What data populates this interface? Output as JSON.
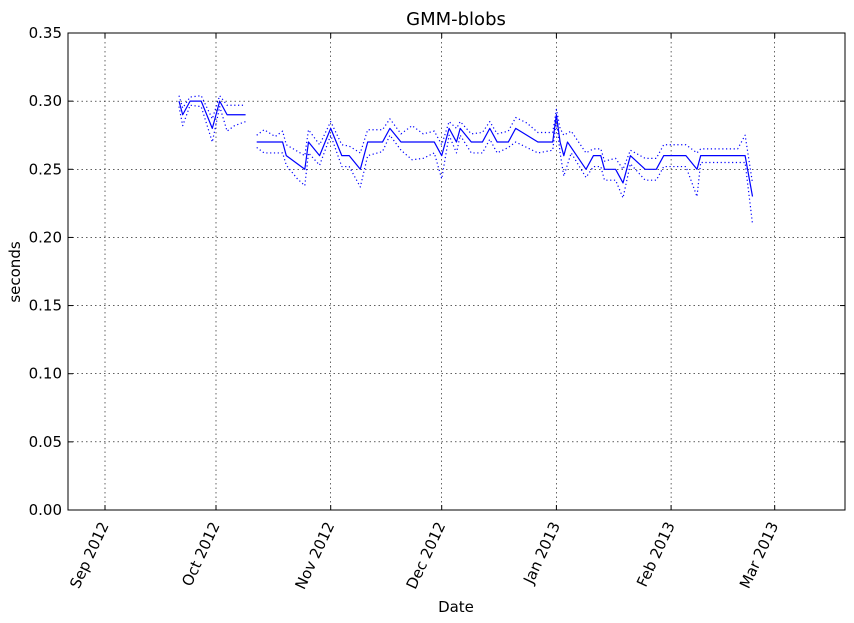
{
  "chart_data": {
    "type": "line",
    "title": "GMM-blobs",
    "xlabel": "Date",
    "ylabel": "seconds",
    "ylim": [
      0,
      0.35
    ],
    "xlim": [
      "2012-08-22",
      "2013-03-20"
    ],
    "grid": true,
    "y_ticks": [
      0.0,
      0.05,
      0.1,
      0.15,
      0.2,
      0.25,
      0.3,
      0.35
    ],
    "y_tick_labels": [
      "0.00",
      "0.05",
      "0.10",
      "0.15",
      "0.20",
      "0.25",
      "0.30",
      "0.35"
    ],
    "x_ticks": [
      "2012-09-01",
      "2012-10-01",
      "2012-11-01",
      "2012-12-01",
      "2013-01-01",
      "2013-02-01",
      "2013-03-01"
    ],
    "x_tick_labels": [
      "Sep 2012",
      "Oct 2012",
      "Nov 2012",
      "Dec 2012",
      "Jan 2013",
      "Feb 2013",
      "Mar 2013"
    ],
    "color": "#0000ff",
    "series": [
      {
        "style": "solid",
        "points": [
          [
            "2012-09-21",
            0.3
          ],
          [
            "2012-09-22",
            0.29
          ],
          [
            "2012-09-24",
            0.3
          ],
          [
            "2012-09-27",
            0.3
          ],
          [
            "2012-09-30",
            0.28
          ],
          [
            "2012-10-02",
            0.3
          ],
          [
            "2012-10-04",
            0.29
          ],
          [
            "2012-10-09",
            0.29
          ],
          null,
          [
            "2012-10-12",
            0.27
          ],
          [
            "2012-10-19",
            0.27
          ],
          [
            "2012-10-20",
            0.26
          ],
          [
            "2012-10-25",
            0.25
          ],
          [
            "2012-10-26",
            0.27
          ],
          [
            "2012-10-29",
            0.26
          ],
          [
            "2012-11-01",
            0.28
          ],
          [
            "2012-11-04",
            0.26
          ],
          [
            "2012-11-06",
            0.26
          ],
          [
            "2012-11-09",
            0.25
          ],
          [
            "2012-11-11",
            0.27
          ],
          [
            "2012-11-15",
            0.27
          ],
          [
            "2012-11-17",
            0.28
          ],
          [
            "2012-11-20",
            0.27
          ],
          [
            "2012-11-29",
            0.27
          ],
          [
            "2012-12-01",
            0.26
          ],
          [
            "2012-12-03",
            0.28
          ],
          [
            "2012-12-05",
            0.27
          ],
          [
            "2012-12-06",
            0.28
          ],
          [
            "2012-12-09",
            0.27
          ],
          [
            "2012-12-12",
            0.27
          ],
          [
            "2012-12-14",
            0.28
          ],
          [
            "2012-12-16",
            0.27
          ],
          [
            "2012-12-19",
            0.27
          ],
          [
            "2012-12-21",
            0.28
          ],
          [
            "2012-12-27",
            0.27
          ],
          [
            "2012-12-30",
            0.27
          ],
          [
            "2012-12-31",
            0.27
          ],
          [
            "2013-01-01",
            0.29
          ],
          [
            "2013-01-02",
            0.27
          ],
          [
            "2013-01-03",
            0.26
          ],
          [
            "2013-01-04",
            0.27
          ],
          [
            "2013-01-09",
            0.25
          ],
          [
            "2013-01-11",
            0.26
          ],
          [
            "2013-01-13",
            0.26
          ],
          [
            "2013-01-14",
            0.25
          ],
          [
            "2013-01-17",
            0.25
          ],
          [
            "2013-01-19",
            0.24
          ],
          [
            "2013-01-21",
            0.26
          ],
          [
            "2013-01-25",
            0.25
          ],
          [
            "2013-01-28",
            0.25
          ],
          [
            "2013-01-30",
            0.26
          ],
          [
            "2013-02-05",
            0.26
          ],
          [
            "2013-02-08",
            0.25
          ],
          [
            "2013-02-09",
            0.26
          ],
          [
            "2013-02-21",
            0.26
          ],
          [
            "2013-02-23",
            0.23
          ]
        ]
      },
      {
        "style": "dotted",
        "points": [
          [
            "2012-09-21",
            0.304
          ],
          [
            "2012-09-22",
            0.295
          ],
          [
            "2012-09-24",
            0.303
          ],
          [
            "2012-09-27",
            0.304
          ],
          [
            "2012-09-30",
            0.287
          ],
          [
            "2012-10-02",
            0.304
          ],
          [
            "2012-10-04",
            0.297
          ],
          [
            "2012-10-09",
            0.297
          ],
          null,
          [
            "2012-10-12",
            0.275
          ],
          [
            "2012-10-14",
            0.279
          ],
          [
            "2012-10-17",
            0.274
          ],
          [
            "2012-10-19",
            0.278
          ],
          [
            "2012-10-20",
            0.268
          ],
          [
            "2012-10-25",
            0.26
          ],
          [
            "2012-10-26",
            0.279
          ],
          [
            "2012-10-29",
            0.268
          ],
          [
            "2012-11-01",
            0.285
          ],
          [
            "2012-11-04",
            0.268
          ],
          [
            "2012-11-06",
            0.267
          ],
          [
            "2012-11-09",
            0.262
          ],
          [
            "2012-11-11",
            0.279
          ],
          [
            "2012-11-15",
            0.279
          ],
          [
            "2012-11-17",
            0.287
          ],
          [
            "2012-11-20",
            0.276
          ],
          [
            "2012-11-23",
            0.282
          ],
          [
            "2012-11-26",
            0.276
          ],
          [
            "2012-11-29",
            0.278
          ],
          [
            "2012-12-01",
            0.268
          ],
          [
            "2012-12-03",
            0.285
          ],
          [
            "2012-12-05",
            0.28
          ],
          [
            "2012-12-06",
            0.285
          ],
          [
            "2012-12-09",
            0.276
          ],
          [
            "2012-12-12",
            0.277
          ],
          [
            "2012-12-14",
            0.285
          ],
          [
            "2012-12-16",
            0.276
          ],
          [
            "2012-12-19",
            0.278
          ],
          [
            "2012-12-21",
            0.288
          ],
          [
            "2012-12-24",
            0.284
          ],
          [
            "2012-12-27",
            0.277
          ],
          [
            "2012-12-31",
            0.277
          ],
          [
            "2013-01-01",
            0.294
          ],
          [
            "2013-01-02",
            0.28
          ],
          [
            "2013-01-03",
            0.275
          ],
          [
            "2013-01-05",
            0.278
          ],
          [
            "2013-01-09",
            0.262
          ],
          [
            "2013-01-11",
            0.265
          ],
          [
            "2013-01-13",
            0.265
          ],
          [
            "2013-01-14",
            0.256
          ],
          [
            "2013-01-17",
            0.258
          ],
          [
            "2013-01-19",
            0.25
          ],
          [
            "2013-01-21",
            0.264
          ],
          [
            "2013-01-25",
            0.258
          ],
          [
            "2013-01-28",
            0.258
          ],
          [
            "2013-01-30",
            0.268
          ],
          [
            "2013-02-05",
            0.268
          ],
          [
            "2013-02-08",
            0.262
          ],
          [
            "2013-02-09",
            0.265
          ],
          [
            "2013-02-19",
            0.265
          ],
          [
            "2013-02-21",
            0.275
          ],
          [
            "2013-02-23",
            0.24
          ]
        ]
      },
      {
        "style": "dotted",
        "points": [
          [
            "2012-09-21",
            0.296
          ],
          [
            "2012-09-22",
            0.282
          ],
          [
            "2012-09-24",
            0.297
          ],
          [
            "2012-09-27",
            0.296
          ],
          [
            "2012-09-30",
            0.27
          ],
          [
            "2012-10-02",
            0.296
          ],
          [
            "2012-10-04",
            0.278
          ],
          [
            "2012-10-06",
            0.282
          ],
          [
            "2012-10-09",
            0.285
          ],
          null,
          [
            "2012-10-12",
            0.266
          ],
          [
            "2012-10-14",
            0.262
          ],
          [
            "2012-10-17",
            0.262
          ],
          [
            "2012-10-19",
            0.262
          ],
          [
            "2012-10-20",
            0.253
          ],
          [
            "2012-10-23",
            0.243
          ],
          [
            "2012-10-25",
            0.238
          ],
          [
            "2012-10-26",
            0.262
          ],
          [
            "2012-10-29",
            0.253
          ],
          [
            "2012-11-01",
            0.275
          ],
          [
            "2012-11-04",
            0.252
          ],
          [
            "2012-11-06",
            0.252
          ],
          [
            "2012-11-09",
            0.237
          ],
          [
            "2012-11-11",
            0.26
          ],
          [
            "2012-11-15",
            0.263
          ],
          [
            "2012-11-17",
            0.275
          ],
          [
            "2012-11-20",
            0.264
          ],
          [
            "2012-11-23",
            0.257
          ],
          [
            "2012-11-26",
            0.258
          ],
          [
            "2012-11-29",
            0.262
          ],
          [
            "2012-12-01",
            0.243
          ],
          [
            "2012-12-03",
            0.275
          ],
          [
            "2012-12-05",
            0.262
          ],
          [
            "2012-12-06",
            0.275
          ],
          [
            "2012-12-09",
            0.262
          ],
          [
            "2012-12-12",
            0.262
          ],
          [
            "2012-12-14",
            0.272
          ],
          [
            "2012-12-16",
            0.262
          ],
          [
            "2012-12-19",
            0.266
          ],
          [
            "2012-12-21",
            0.27
          ],
          [
            "2012-12-27",
            0.262
          ],
          [
            "2012-12-31",
            0.264
          ],
          [
            "2013-01-01",
            0.286
          ],
          [
            "2013-01-02",
            0.262
          ],
          [
            "2013-01-03",
            0.245
          ],
          [
            "2013-01-05",
            0.262
          ],
          [
            "2013-01-09",
            0.244
          ],
          [
            "2013-01-11",
            0.252
          ],
          [
            "2013-01-13",
            0.252
          ],
          [
            "2013-01-14",
            0.242
          ],
          [
            "2013-01-17",
            0.242
          ],
          [
            "2013-01-19",
            0.229
          ],
          [
            "2013-01-21",
            0.254
          ],
          [
            "2013-01-25",
            0.242
          ],
          [
            "2013-01-28",
            0.242
          ],
          [
            "2013-01-30",
            0.252
          ],
          [
            "2013-02-05",
            0.252
          ],
          [
            "2013-02-08",
            0.23
          ],
          [
            "2013-02-09",
            0.255
          ],
          [
            "2013-02-21",
            0.255
          ],
          [
            "2013-02-23",
            0.21
          ]
        ]
      }
    ]
  }
}
